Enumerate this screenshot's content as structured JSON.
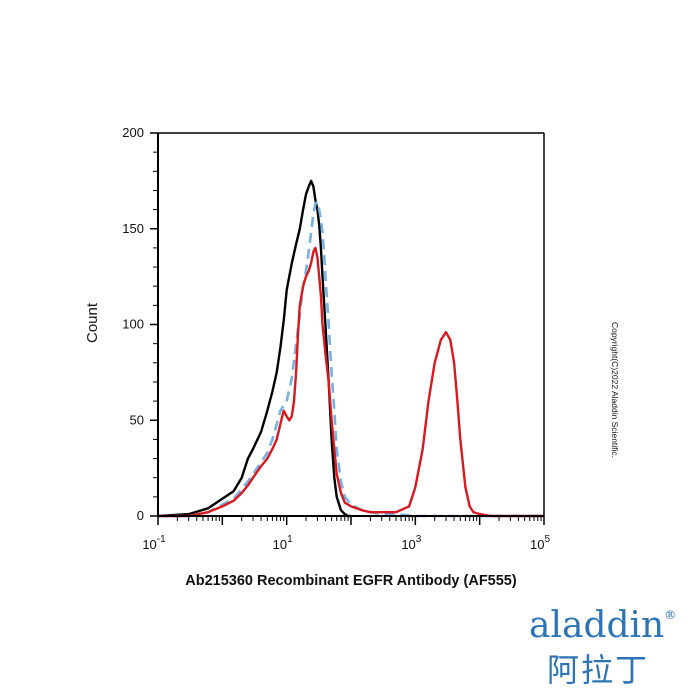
{
  "chart_data": {
    "type": "line",
    "title": "",
    "xlabel": "Ab215360 Recombinant EGFR Antibody (AF555)",
    "ylabel": "Count",
    "x_scale": "log",
    "xlim": [
      0.1,
      100000
    ],
    "ylim": [
      0,
      200
    ],
    "y_ticks": [
      "0",
      "50",
      "100",
      "150",
      "200"
    ],
    "x_ticks": [
      {
        "base": "10",
        "exp": "-1",
        "value": 0.1
      },
      {
        "base": "10",
        "exp": "1",
        "value": 10
      },
      {
        "base": "10",
        "exp": "3",
        "value": 1000
      },
      {
        "base": "10",
        "exp": "5",
        "value": 100000
      }
    ],
    "series": [
      {
        "color": "#000000",
        "style": "solid",
        "x": [
          0.1,
          0.3,
          0.6,
          1,
          1.5,
          2,
          2.5,
          3,
          4,
          5,
          6,
          7,
          8,
          9,
          10,
          12,
          14,
          16,
          18,
          20,
          22,
          24,
          26,
          28,
          30,
          32,
          34,
          36,
          40,
          45,
          50,
          55,
          60,
          70,
          80,
          90,
          100
        ],
        "y": [
          0,
          1,
          4,
          9,
          13,
          20,
          30,
          35,
          44,
          55,
          65,
          75,
          88,
          102,
          118,
          132,
          142,
          150,
          160,
          168,
          172,
          175,
          172,
          165,
          160,
          152,
          140,
          125,
          100,
          70,
          40,
          20,
          10,
          3,
          1,
          0,
          0
        ]
      },
      {
        "color": "#7ab0e0",
        "style": "dashed",
        "x": [
          0.1,
          0.3,
          0.6,
          1,
          1.5,
          2,
          2.5,
          3,
          4,
          5,
          6,
          7,
          8,
          10,
          12,
          14,
          16,
          18,
          20,
          22,
          24,
          26,
          28,
          30,
          32,
          34,
          36,
          38,
          40,
          45,
          50,
          55,
          60,
          70,
          80,
          100,
          150,
          200,
          300,
          500,
          1000,
          2000,
          5000,
          10000,
          100000
        ],
        "y": [
          0,
          0,
          2,
          6,
          9,
          14,
          18,
          22,
          28,
          33,
          40,
          48,
          55,
          60,
          72,
          90,
          105,
          120,
          128,
          138,
          148,
          158,
          163,
          164,
          160,
          155,
          148,
          138,
          125,
          100,
          75,
          55,
          35,
          18,
          10,
          6,
          3,
          2,
          1,
          1,
          0,
          0,
          0,
          0,
          0
        ]
      },
      {
        "color": "#d71920",
        "style": "solid",
        "x": [
          0.1,
          0.3,
          0.6,
          1,
          1.5,
          2,
          2.5,
          3,
          4,
          5,
          6,
          7,
          8,
          9,
          10,
          11,
          12,
          13,
          14,
          15,
          16,
          18,
          20,
          22,
          24,
          26,
          28,
          30,
          32,
          34,
          36,
          40,
          45,
          50,
          55,
          60,
          70,
          80,
          100,
          150,
          200,
          300,
          500,
          800,
          1000,
          1300,
          1600,
          2000,
          2500,
          3000,
          3500,
          4000,
          4500,
          5000,
          6000,
          7000,
          8000,
          10000,
          15000,
          20000,
          50000,
          100000
        ],
        "y": [
          0,
          0,
          2,
          5,
          8,
          12,
          16,
          20,
          26,
          30,
          35,
          40,
          48,
          55,
          52,
          50,
          52,
          60,
          75,
          95,
          110,
          120,
          125,
          128,
          132,
          138,
          140,
          135,
          125,
          115,
          100,
          85,
          70,
          50,
          35,
          22,
          12,
          7,
          5,
          3,
          2,
          2,
          2,
          5,
          15,
          35,
          60,
          80,
          92,
          96,
          92,
          80,
          60,
          40,
          15,
          5,
          2,
          1,
          0,
          0,
          0,
          0
        ]
      }
    ],
    "grid": false,
    "legend": "none"
  },
  "copyright": "Copyright(C)2022 Aladdin Scientific.",
  "logo": {
    "latin": "aladdin",
    "registered": "®",
    "chinese": "阿拉丁",
    "color": "#2e74b5",
    "accent": "#c9a227"
  }
}
